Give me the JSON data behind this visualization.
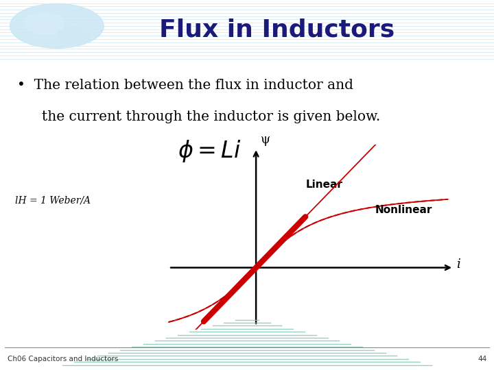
{
  "title": "Flux in Inductors",
  "title_color": "#1a1a7a",
  "header_bg_top": "#87ceeb",
  "header_stripe_color": "#b8dff0",
  "separator_dark": "#00008b",
  "separator_teal": "#008b8b",
  "bullet_line1": "The relation between the flux in inductor and",
  "bullet_line2": "the current through the inductor is given below.",
  "formula": "$\\phi = Li$",
  "lh_label": "lH = 1 Weber/A",
  "psi_label": "ψ",
  "i_label": "i",
  "linear_label": "Linear",
  "nonlinear_label": "Nonlinear",
  "footer_text": "Ch06 Capacitors and Inductors",
  "footer_page": "44",
  "bg_color": "#ffffff",
  "red_color": "#cc0000",
  "text_color": "#000000",
  "teal_lines": "#88c8b8",
  "world_map_color": "#cce8f4"
}
